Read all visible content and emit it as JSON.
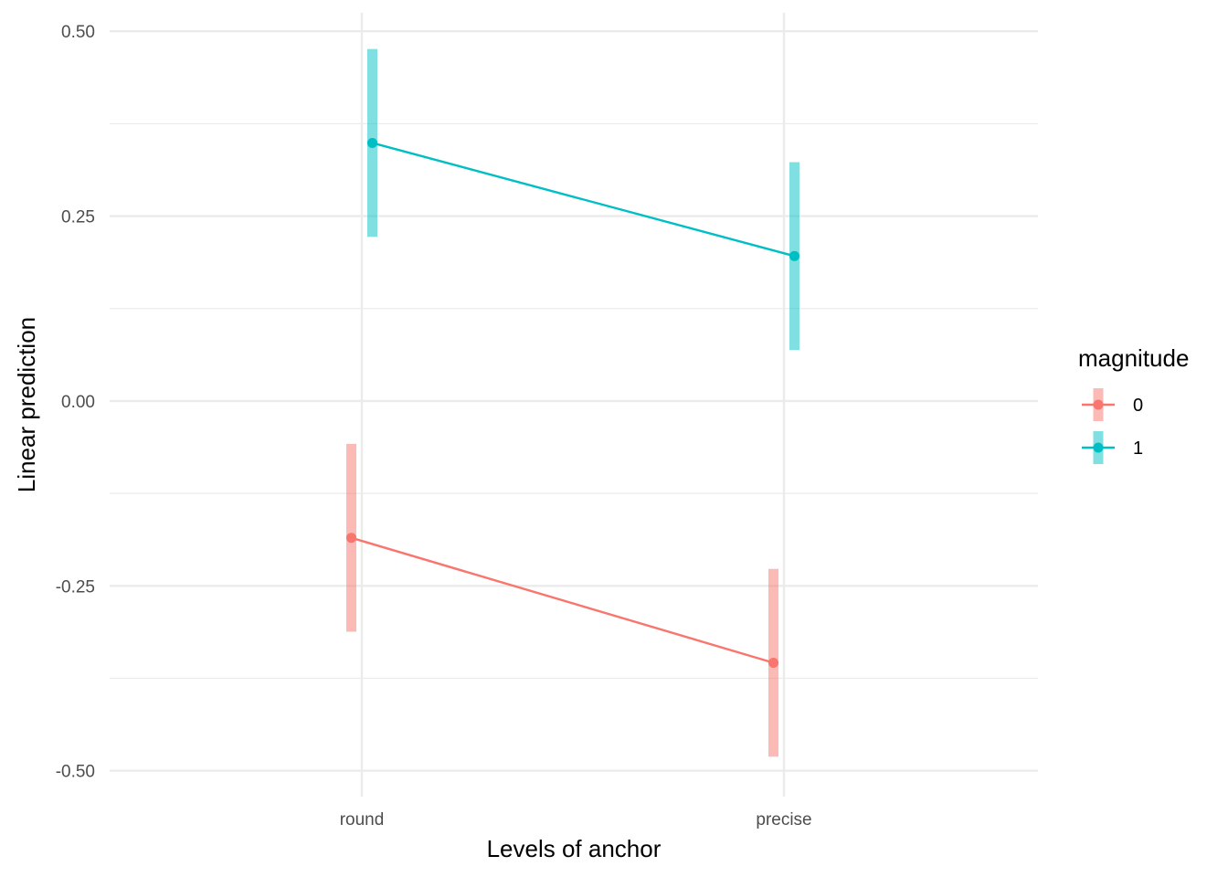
{
  "chart_data": {
    "type": "line",
    "xlabel": "Levels of anchor",
    "ylabel": "Linear prediction",
    "categories": [
      "round",
      "precise"
    ],
    "ylim": [
      -0.535,
      0.525
    ],
    "yticks": [
      -0.5,
      -0.25,
      0,
      0.25,
      0.5
    ],
    "ytick_labels": [
      "-0.50",
      "-0.25",
      "0.00",
      "0.25",
      "0.50"
    ],
    "grid": true,
    "legend": {
      "title": "magnitude",
      "position": "right"
    },
    "series": [
      {
        "name": "0",
        "color": "#F8766D",
        "values": [
          -0.185,
          -0.354
        ],
        "lower": [
          -0.312,
          -0.481
        ],
        "upper": [
          -0.058,
          -0.227
        ]
      },
      {
        "name": "1",
        "color": "#00BFC4",
        "values": [
          0.349,
          0.196
        ],
        "lower": [
          0.222,
          0.069
        ],
        "upper": [
          0.476,
          0.323
        ]
      }
    ]
  }
}
